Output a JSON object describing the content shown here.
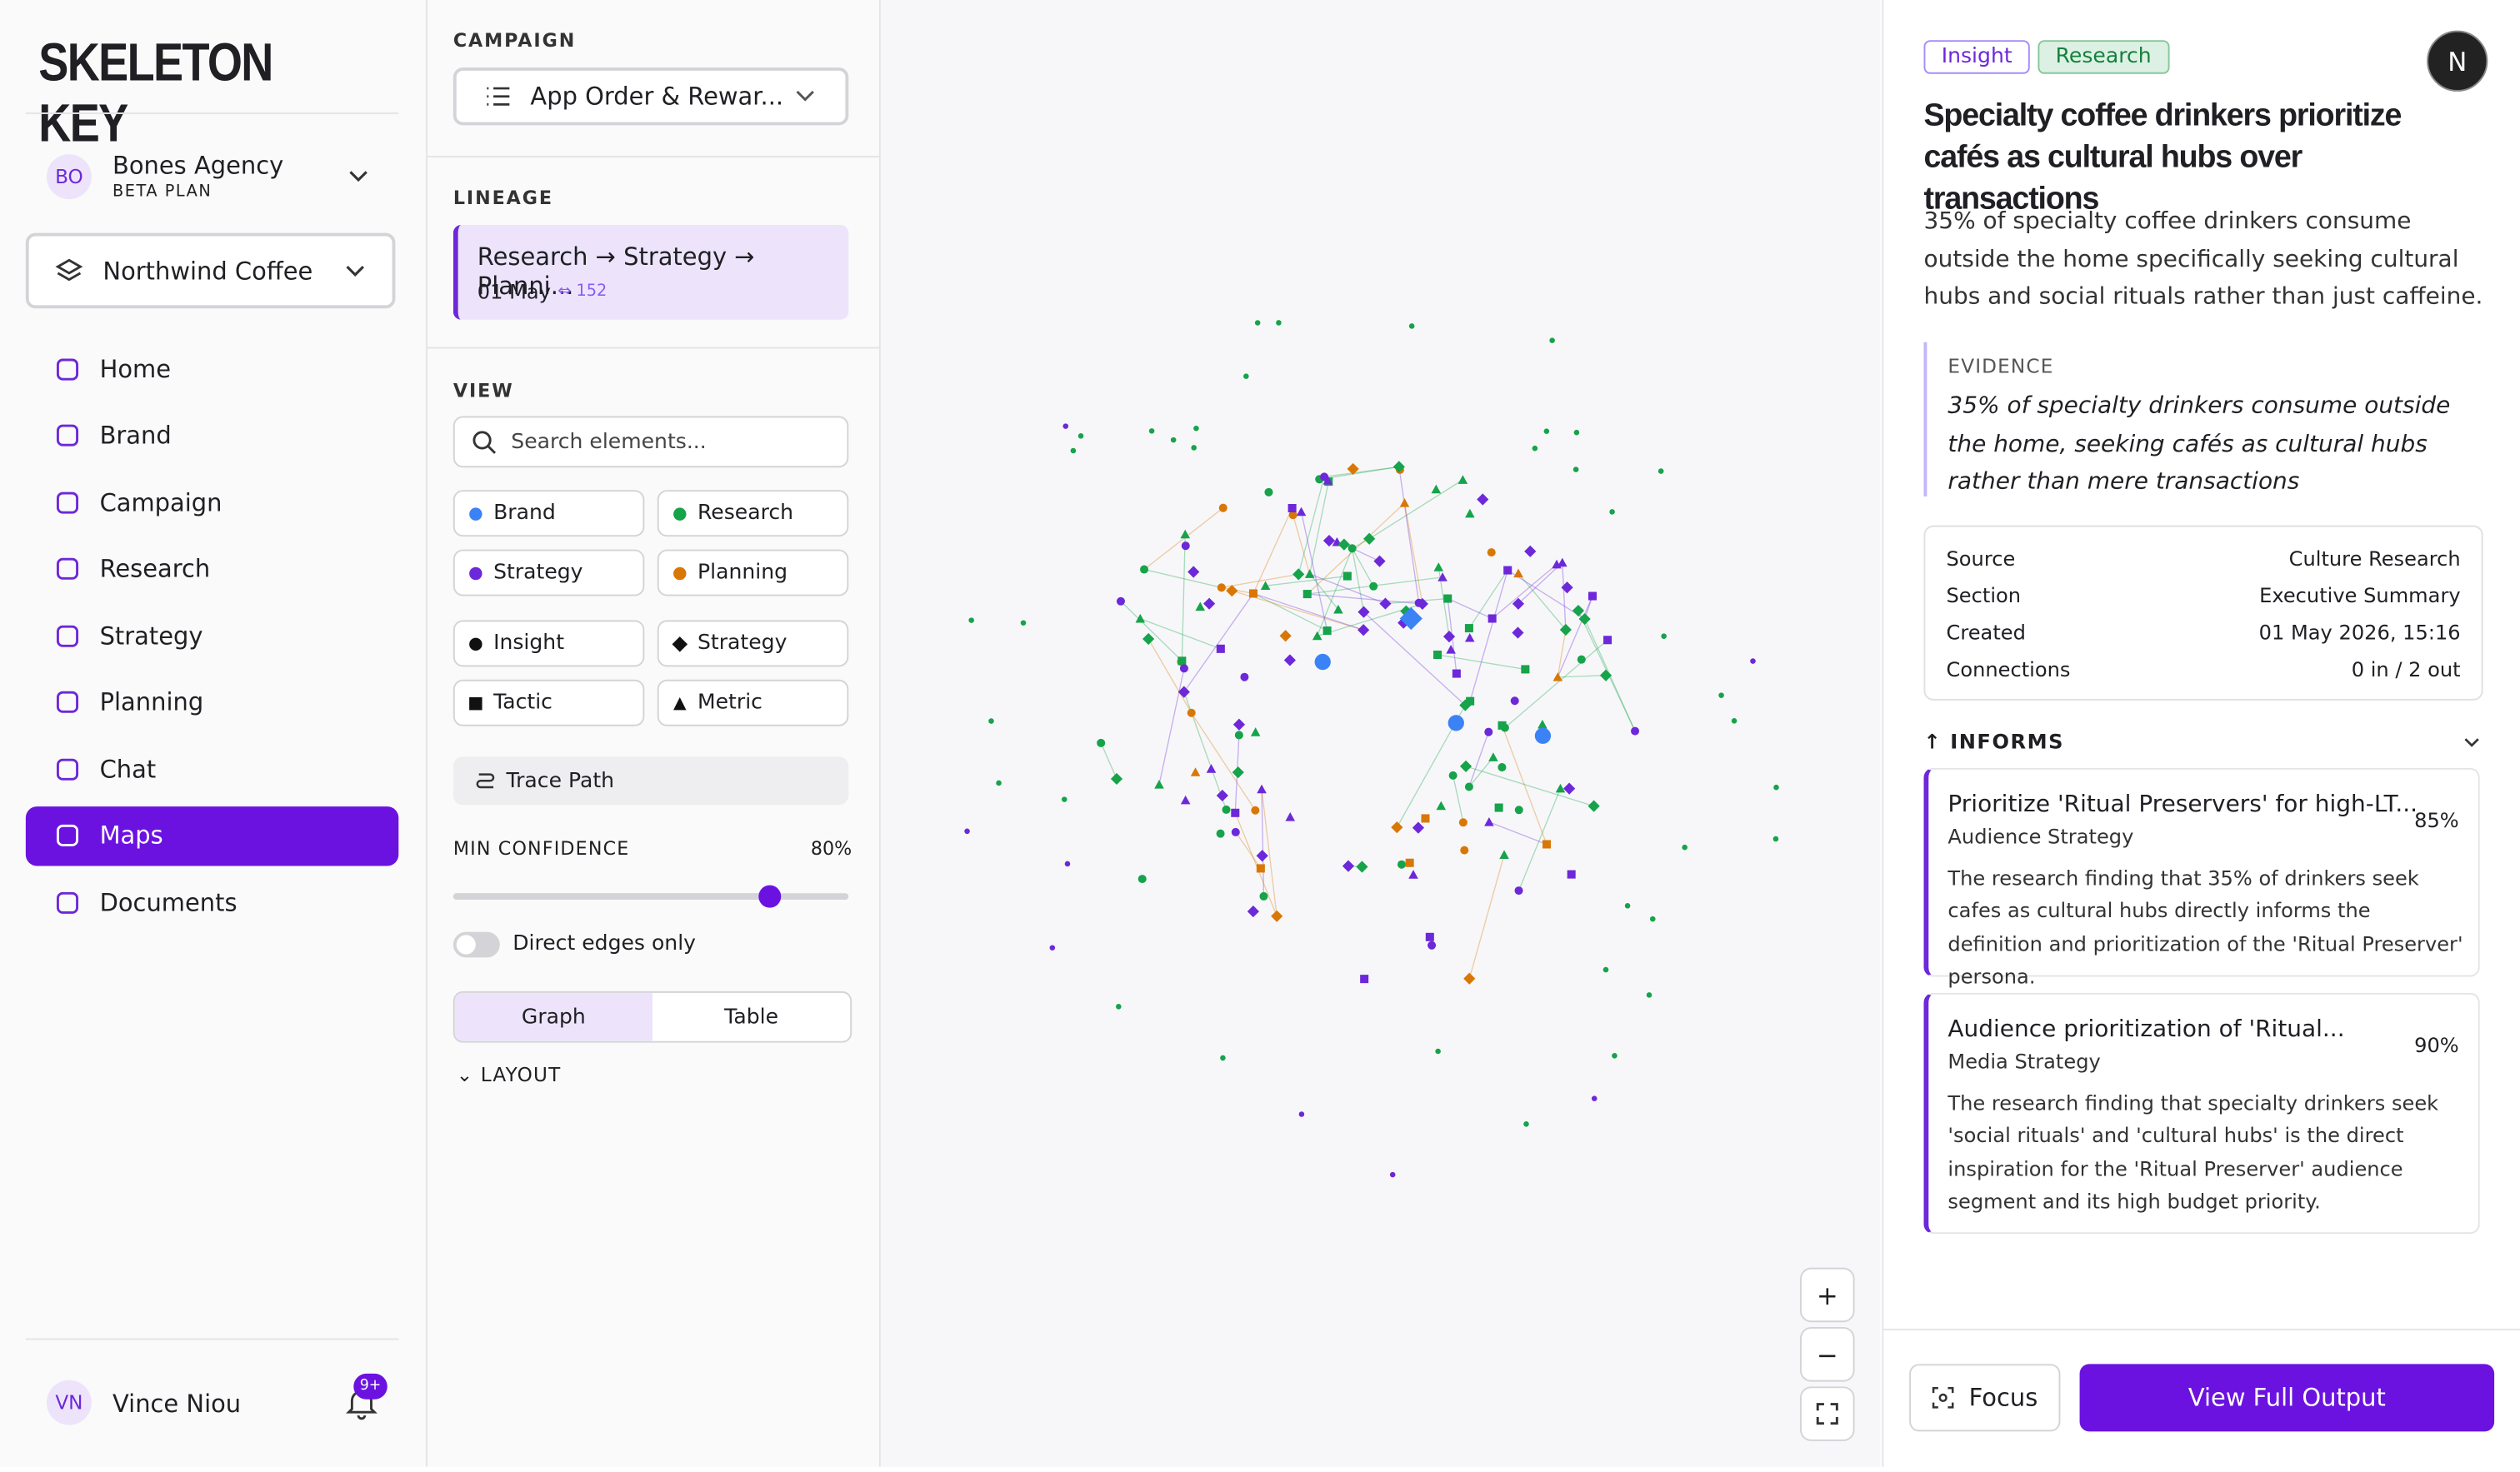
{
  "brand": "SKELETON KEY",
  "workspace": {
    "initials": "BO",
    "name": "Bones Agency",
    "plan": "BETA PLAN"
  },
  "client": "Northwind Coffee",
  "nav": [
    "Home",
    "Brand",
    "Campaign",
    "Research",
    "Strategy",
    "Planning",
    "Chat",
    "Maps",
    "Documents"
  ],
  "user": {
    "initials": "VN",
    "name": "Vince Niou",
    "notifications": "9+"
  },
  "controls": {
    "campaign_label": "CAMPAIGN",
    "campaign": "App Order & Rewar...",
    "lineage_label": "LINEAGE",
    "lineage": {
      "path": "Research → Strategy → Planni...",
      "date": "01 May",
      "links": "152"
    },
    "view_label": "VIEW",
    "search_placeholder": "Search elements...",
    "filters": [
      "Brand",
      "Research",
      "Strategy",
      "Planning",
      "Insight",
      "Strategy",
      "Tactic",
      "Metric"
    ],
    "trace": "Trace Path",
    "confidence_label": "MIN CONFIDENCE",
    "min_confidence": {
      "value": 80,
      "label": "80%"
    },
    "direct_edges": "Direct edges only",
    "tabs": [
      "Graph",
      "Table"
    ],
    "layout": "LAYOUT"
  },
  "detail": {
    "avatar": "N",
    "tags": [
      "Insight",
      "Research"
    ],
    "title": "Specialty coffee drinkers prioritize cafés as cultural hubs over transactions",
    "summary": "35% of specialty coffee drinkers consume outside the home specifically seeking cultural hubs and social rituals rather than just caffeine.",
    "evidence_label": "EVIDENCE",
    "evidence": "35% of specialty drinkers consume outside the home, seeking cafés as cultural hubs rather than mere transactions",
    "meta": [
      [
        "Source",
        "Culture Research"
      ],
      [
        "Section",
        "Executive Summary"
      ],
      [
        "Created",
        "01 May 2026, 15:16"
      ],
      [
        "Connections",
        "0 in / 2 out"
      ]
    ],
    "informs_label": "INFORMS",
    "informs": [
      {
        "title": "Prioritize 'Ritual Preservers' for high-LT...",
        "confidence": "85%",
        "subtitle": "Audience Strategy",
        "text": "The research finding that 35% of drinkers seek cafes as cultural hubs directly informs the definition and prioritization of the 'Ritual Preserver' persona."
      },
      {
        "title": "Audience prioritization of 'Ritual...",
        "confidence": "90%",
        "subtitle": "Media Strategy",
        "text": "The research finding that specialty drinkers seek 'social rituals' and 'cultural hubs' is the direct inspiration for the 'Ritual Preserver' audience segment and its high budget priority."
      }
    ],
    "focus": "Focus",
    "view": "View Full Output"
  }
}
